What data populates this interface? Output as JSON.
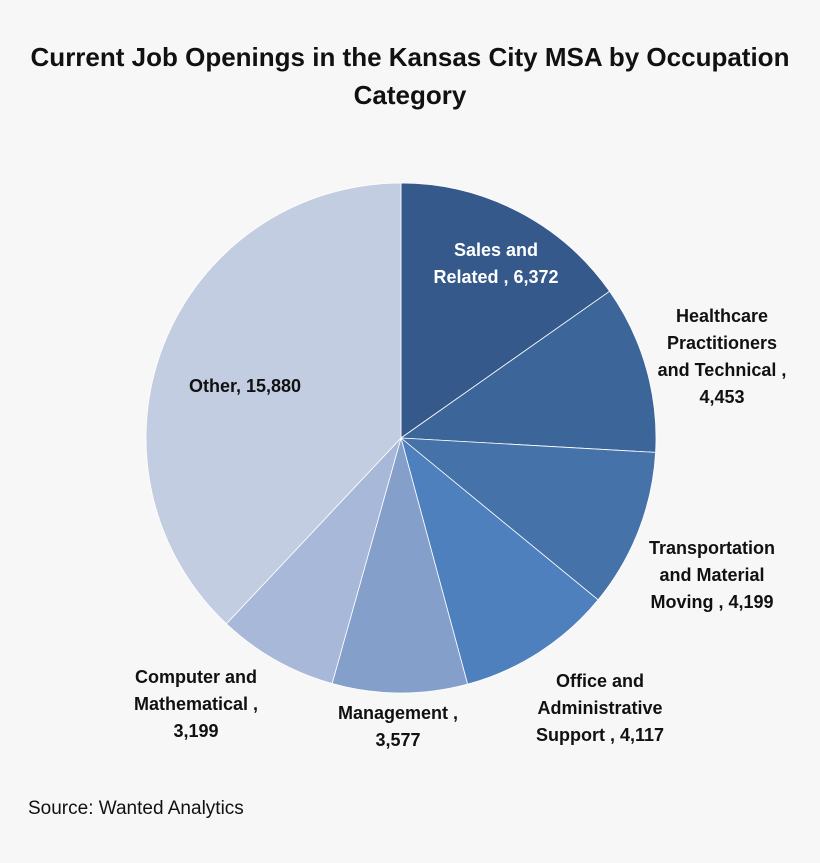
{
  "chart_data": {
    "type": "pie",
    "title": "Current Job Openings in the Kansas City MSA by Occupation Category",
    "start_angle": "12 o'clock, clockwise",
    "categories": [
      "Sales and Related",
      "Healthcare Practitioners and Technical",
      "Transportation and Material Moving",
      "Office and Administrative Support",
      "Management",
      "Computer and Mathematical",
      "Other"
    ],
    "values": [
      6372,
      4453,
      4199,
      4117,
      3577,
      3199,
      15880
    ],
    "colors": [
      "#34598a",
      "#3c6699",
      "#4672aa",
      "#4d80bd",
      "#849fca",
      "#a8b8d8",
      "#c3cde2"
    ],
    "data_labels": [
      [
        "Sales and",
        "Related ,  6,372"
      ],
      [
        "Healthcare",
        "Practitioners",
        "and Technical ,",
        "4,453"
      ],
      [
        "Transportation",
        "and Material",
        "Moving ,  4,199"
      ],
      [
        "Office and",
        "Administrative",
        "Support ,  4,117"
      ],
      [
        "Management ,",
        "3,577"
      ],
      [
        "Computer and",
        "Mathematical ,",
        "3,199"
      ],
      [
        "Other,  15,880"
      ]
    ],
    "legend": "none"
  },
  "source": "Source: Wanted Analytics"
}
